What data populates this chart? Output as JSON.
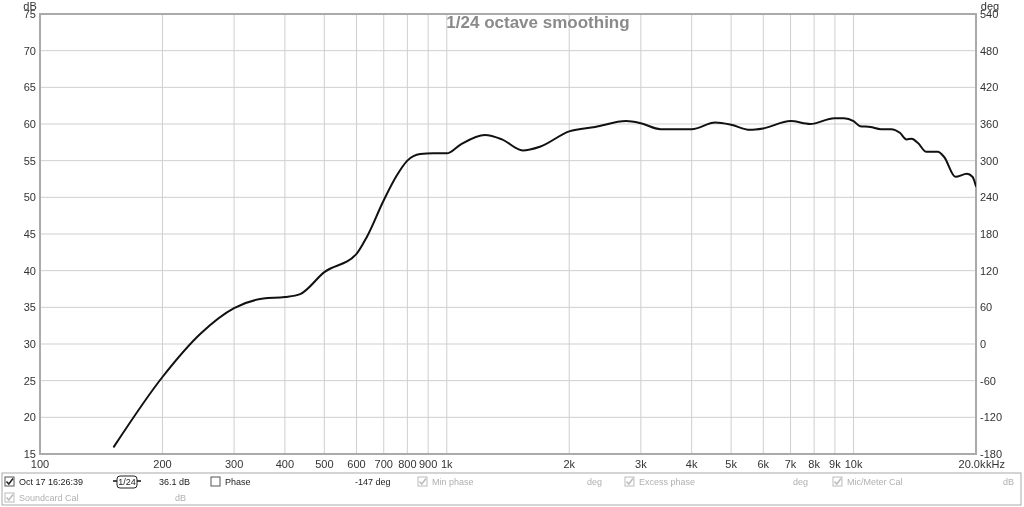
{
  "chart_data": {
    "type": "line",
    "title": "1/24 octave smoothing",
    "ylabel": "dB",
    "y2label": "deg",
    "log": "x",
    "grid": true,
    "legend": "bottom",
    "xlim": [
      100,
      20000
    ],
    "xticks": [
      100,
      200,
      300,
      400,
      500,
      600,
      700,
      800,
      900,
      {
        "value": 1000,
        "label": "1k"
      },
      {
        "value": 2000,
        "label": "2k"
      },
      {
        "value": 3000,
        "label": "3k"
      },
      {
        "value": 4000,
        "label": "4k"
      },
      {
        "value": 5000,
        "label": "5k"
      },
      {
        "value": 6000,
        "label": "6k"
      },
      {
        "value": 7000,
        "label": "7k"
      },
      {
        "value": 8000,
        "label": "8k"
      },
      {
        "value": 9000,
        "label": "9k"
      },
      {
        "value": 10000,
        "label": "10k"
      },
      {
        "value": 20000,
        "label": "20.0k"
      }
    ],
    "xlabel": "kHz",
    "ylim": [
      15,
      75
    ],
    "yticks": [
      15,
      20,
      25,
      30,
      35,
      40,
      45,
      50,
      55,
      60,
      65,
      70,
      75
    ],
    "y2lim": [
      -180,
      540
    ],
    "y2ticks": [
      -180,
      -120,
      -60,
      0,
      60,
      120,
      180,
      240,
      300,
      360,
      420,
      480,
      540
    ],
    "series": [
      {
        "name": "Oct 17 16:26:39",
        "color": "#111111",
        "x": [
          152,
          200,
          248,
          300,
          354,
          400,
          436,
          500,
          600,
          636,
          700,
          754,
          800,
          860,
          927,
          1000,
          1081,
          1241,
          1367,
          1537,
          1694,
          2000,
          2316,
          2759,
          3000,
          3352,
          4000,
          4571,
          5000,
          5560,
          6000,
          7000,
          7820,
          8970,
          9470,
          10000,
          10380,
          11000,
          11670,
          12370,
          13000,
          13500,
          13900,
          14400,
          15100,
          16100,
          16700,
          17800,
          19000,
          19600,
          20000
        ],
        "values": [
          16.0,
          25.5,
          31.4,
          34.9,
          36.2,
          36.4,
          36.8,
          39.8,
          42.3,
          44.6,
          49.6,
          53.0,
          55.0,
          55.9,
          56.0,
          56.0,
          57.2,
          58.5,
          57.9,
          56.4,
          56.9,
          59.0,
          59.6,
          60.4,
          60.1,
          59.3,
          59.3,
          60.2,
          59.9,
          59.2,
          59.4,
          60.4,
          60.0,
          60.8,
          60.8,
          60.4,
          59.7,
          59.6,
          59.3,
          59.3,
          58.8,
          57.9,
          58.0,
          57.4,
          56.2,
          56.2,
          55.5,
          52.8,
          53.2,
          52.8,
          51.5
        ]
      }
    ],
    "annotations": [
      "1/24",
      "36.1 dB",
      "Phase",
      "-147 deg",
      "Min phase",
      "deg",
      "Excess phase",
      "deg",
      "Mic/Meter Cal",
      "dB",
      "Soundcard Cal",
      "dB"
    ]
  }
}
